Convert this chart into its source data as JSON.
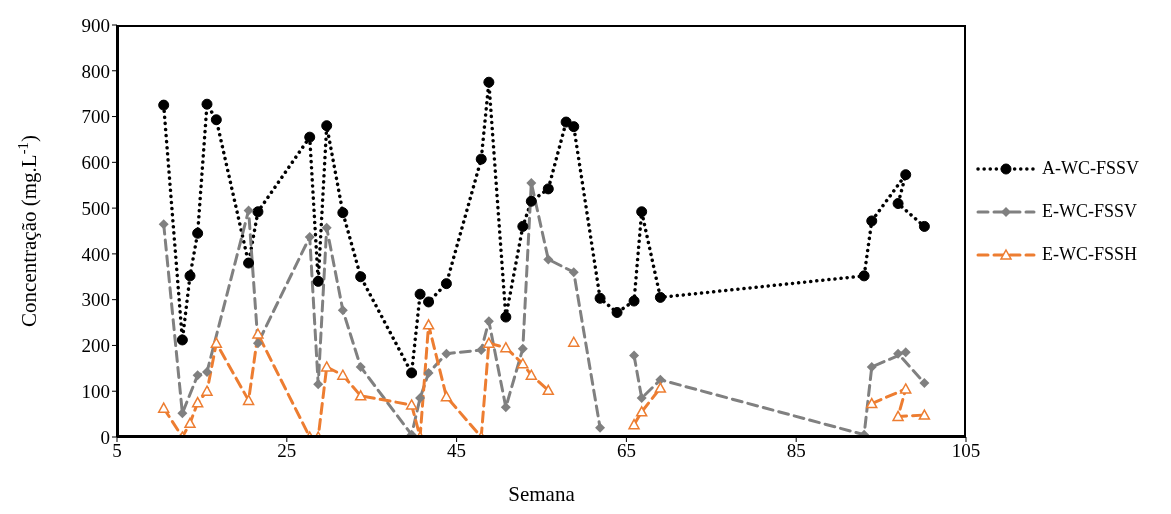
{
  "chart_data": {
    "type": "line",
    "xlabel": "Semana",
    "ylabel": "Concentração (mg.L$^{-1}$)",
    "xlim": [
      5,
      105
    ],
    "xticks": [
      5,
      25,
      45,
      65,
      85,
      105
    ],
    "ylim": [
      0,
      900
    ],
    "yticks": [
      0,
      100,
      200,
      300,
      400,
      500,
      600,
      700,
      800,
      900
    ],
    "grid": false,
    "legend": "right",
    "series": [
      {
        "name": "A-WC-FSSV",
        "color": "#000000",
        "marker": "circle",
        "line_style": "dotted",
        "x": [
          10.5,
          12.7,
          13.6,
          14.5,
          15.6,
          16.7,
          20.5,
          21.6,
          27.7,
          28.7,
          29.7,
          31.6,
          33.7,
          39.7,
          40.7,
          41.7,
          43.8,
          47.9,
          48.8,
          50.8,
          52.8,
          53.8,
          55.8,
          57.9,
          58.8,
          61.9,
          63.9,
          65.9,
          66.8,
          69.0,
          93.0,
          93.9,
          97.9,
          97.0,
          100.1
        ],
        "values": [
          725,
          212,
          352,
          445,
          727,
          693,
          380,
          492,
          655,
          340,
          680,
          490,
          350,
          140,
          312,
          295,
          335,
          607,
          775,
          262,
          460,
          515,
          542,
          688,
          678,
          303,
          272,
          297,
          492,
          305,
          352,
          472,
          573,
          510,
          460
        ]
      },
      {
        "name": "E-WC-FSSV",
        "color": "#808080",
        "marker": "diamond",
        "line_style": "dashed",
        "x": [
          10.5,
          12.7,
          14.5,
          15.6,
          20.5,
          21.6,
          27.7,
          28.7,
          29.7,
          31.6,
          33.7,
          39.7,
          40.7,
          41.7,
          43.8,
          47.9,
          48.8,
          50.8,
          52.8,
          53.8,
          55.8,
          58.8,
          61.9,
          63.9,
          65.9,
          66.8,
          69.0,
          93.0,
          93.9,
          97.9,
          97.0,
          100.1
        ],
        "values": [
          465,
          52,
          135,
          142,
          495,
          205,
          437,
          115,
          457,
          277,
          153,
          5,
          85,
          140,
          182,
          190,
          253,
          65,
          193,
          555,
          388,
          360,
          20,
          null,
          178,
          85,
          125,
          5,
          153,
          185,
          182,
          118
        ]
      },
      {
        "name": "E-WC-FSSH",
        "color": "#ed7d31",
        "marker": "triangle",
        "line_style": "dashed",
        "x": [
          10.5,
          12.7,
          13.6,
          14.5,
          15.6,
          16.7,
          20.5,
          21.6,
          27.7,
          28.7,
          29.7,
          31.6,
          33.7,
          39.7,
          40.7,
          41.7,
          43.8,
          47.9,
          48.8,
          50.8,
          52.8,
          53.8,
          55.8,
          57.0,
          58.8,
          62.0,
          65.9,
          66.8,
          69.0,
          80.0,
          93.9,
          97.9,
          97.0,
          100.1
        ],
        "values": [
          63,
          0,
          30,
          75,
          100,
          205,
          80,
          225,
          0,
          0,
          153,
          135,
          90,
          70,
          0,
          245,
          88,
          0,
          205,
          195,
          160,
          135,
          102,
          null,
          207,
          null,
          27,
          55,
          107,
          null,
          73,
          105,
          45,
          48
        ]
      }
    ]
  }
}
